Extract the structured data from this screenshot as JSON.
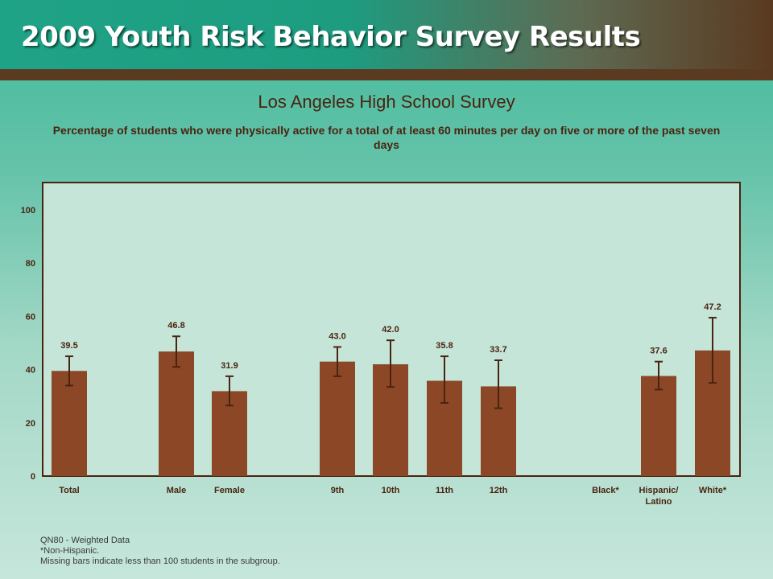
{
  "header": {
    "banner_title": "2009 Youth Risk Behavior Survey Results"
  },
  "chart_data": {
    "type": "bar",
    "title": "Los Angeles High School Survey",
    "subtitle": "Percentage of students who were physically active for a total of at least 60 minutes per day on five or more of the past seven days",
    "xlabel": "",
    "ylabel": "",
    "ylim": [
      0,
      110
    ],
    "yticks": [
      0,
      20,
      40,
      60,
      80,
      100
    ],
    "grid": false,
    "categories": [
      "Total",
      "Male",
      "Female",
      "9th",
      "10th",
      "11th",
      "12th",
      "Black*",
      "Hispanic/ Latino",
      "White*"
    ],
    "category_lines": [
      [
        "Total"
      ],
      [
        "Male"
      ],
      [
        "Female"
      ],
      [
        "9th"
      ],
      [
        "10th"
      ],
      [
        "11th"
      ],
      [
        "12th"
      ],
      [
        "Black*"
      ],
      [
        "Hispanic/",
        "Latino"
      ],
      [
        "White*"
      ]
    ],
    "values": [
      39.5,
      46.8,
      31.9,
      43.0,
      42.0,
      35.8,
      33.7,
      null,
      37.6,
      47.2
    ],
    "value_labels": [
      "39.5",
      "46.8",
      "31.9",
      "43.0",
      "42.0",
      "35.8",
      "33.7",
      "",
      "37.6",
      "47.2"
    ],
    "ci_lower": [
      34.0,
      41.0,
      26.5,
      37.5,
      33.5,
      27.5,
      25.5,
      null,
      32.5,
      35.0
    ],
    "ci_upper": [
      45.0,
      52.5,
      37.5,
      48.5,
      51.0,
      45.0,
      43.5,
      null,
      43.0,
      59.5
    ],
    "colors": {
      "bar": "#8b4726",
      "error_bar": "#4a2410",
      "plot_background": "#c5e5d9",
      "plot_border": "#4a2410",
      "text": "#4a2410"
    }
  },
  "notes": [
    "QN80 - Weighted Data",
    "*Non-Hispanic.",
    "Missing bars indicate less than 100 students in the subgroup."
  ]
}
